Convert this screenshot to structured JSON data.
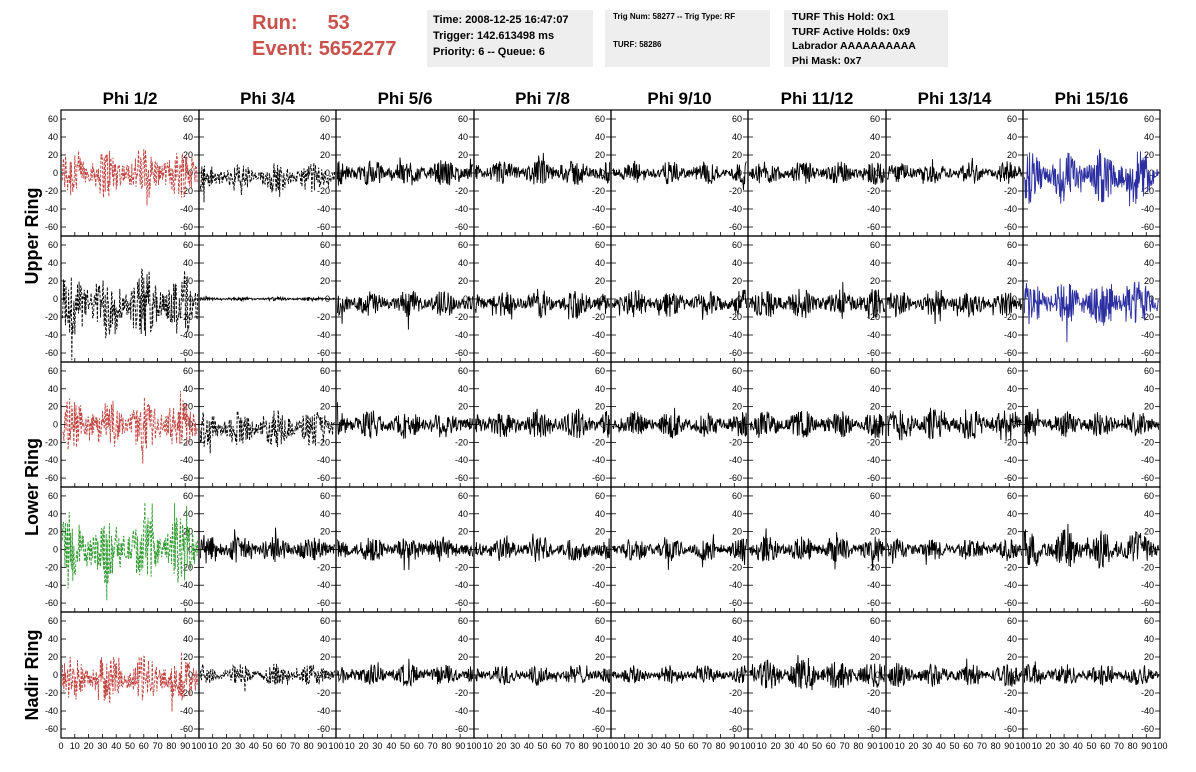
{
  "header": {
    "run_label": "Run:",
    "run_value": "53",
    "event_label": "Event:",
    "event_value": "5652277",
    "time_line": "Time: 2008-12-25 16:47:07",
    "trigger_line": "Trigger: 142.613498 ms",
    "priority_line": "Priority: 6 -- Queue: 6",
    "trig_line": "Trig Num: 58277 -- Trig Type: RF",
    "turf_line": "TURF: 58286",
    "turf_hold_line": "TURF This Hold: 0x1",
    "turf_active_line": "TURF Active Holds: 0x9",
    "labrador_line": "Labrador AAAAAAAAAA",
    "phimask_line": "Phi Mask: 0x7"
  },
  "colors": {
    "red": "#c0403c",
    "green": "#2f9a2f",
    "blue": "#2c2fa0",
    "black": "#000000",
    "run_text": "#c9504b",
    "info_box_bg": "#eeeeee"
  },
  "chart_data": {
    "type": "line",
    "columns": [
      "Phi 1/2",
      "Phi 3/4",
      "Phi 5/6",
      "Phi 7/8",
      "Phi 9/10",
      "Phi 11/12",
      "Phi 13/14",
      "Phi 15/16"
    ],
    "rows": [
      "Upper Ring",
      "Lower Ring",
      "Nadir Ring"
    ],
    "row_panels": [
      {
        "ring": "Upper Ring",
        "panel": 1
      },
      {
        "ring": "Upper Ring",
        "panel": 2
      },
      {
        "ring": "Lower Ring",
        "panel": 1
      },
      {
        "ring": "Lower Ring",
        "panel": 2
      },
      {
        "ring": "Nadir Ring",
        "panel": 1
      }
    ],
    "xlim": [
      0,
      100
    ],
    "ylim": [
      -70,
      70
    ],
    "yticks": [
      -60,
      -40,
      -20,
      0,
      20,
      40,
      60
    ],
    "xticks_first": [
      0,
      10,
      20,
      30,
      40,
      50,
      60,
      70,
      80,
      90,
      100
    ],
    "xticks_other": [
      10,
      20,
      30,
      40,
      50,
      60,
      70,
      80,
      90,
      100
    ],
    "panels": [
      {
        "row": 0,
        "col": 0,
        "color": "red",
        "style": "dashed",
        "amplitude": 28,
        "offset": 0
      },
      {
        "row": 0,
        "col": 1,
        "color": "black",
        "style": "dashed",
        "amplitude": 16,
        "offset": -5
      },
      {
        "row": 0,
        "col": 2,
        "color": "black",
        "style": "solid",
        "amplitude": 14,
        "offset": 0
      },
      {
        "row": 0,
        "col": 3,
        "color": "black",
        "style": "solid",
        "amplitude": 14,
        "offset": 0
      },
      {
        "row": 0,
        "col": 4,
        "color": "black",
        "style": "solid",
        "amplitude": 12,
        "offset": 0
      },
      {
        "row": 0,
        "col": 5,
        "color": "black",
        "style": "solid",
        "amplitude": 13,
        "offset": 0
      },
      {
        "row": 0,
        "col": 6,
        "color": "black",
        "style": "solid",
        "amplitude": 12,
        "offset": 0
      },
      {
        "row": 0,
        "col": 7,
        "color": "blue",
        "style": "solid",
        "amplitude": 28,
        "offset": -4
      },
      {
        "row": 1,
        "col": 0,
        "color": "black",
        "style": "dashed",
        "amplitude": 38,
        "offset": -6
      },
      {
        "row": 1,
        "col": 1,
        "color": "black",
        "style": "solid",
        "amplitude": 2,
        "offset": 0
      },
      {
        "row": 1,
        "col": 2,
        "color": "black",
        "style": "solid",
        "amplitude": 14,
        "offset": -5
      },
      {
        "row": 1,
        "col": 3,
        "color": "black",
        "style": "solid",
        "amplitude": 15,
        "offset": -5
      },
      {
        "row": 1,
        "col": 4,
        "color": "black",
        "style": "solid",
        "amplitude": 15,
        "offset": -5
      },
      {
        "row": 1,
        "col": 5,
        "color": "black",
        "style": "solid",
        "amplitude": 16,
        "offset": -5
      },
      {
        "row": 1,
        "col": 6,
        "color": "black",
        "style": "solid",
        "amplitude": 14,
        "offset": -5
      },
      {
        "row": 1,
        "col": 7,
        "color": "blue",
        "style": "solid",
        "amplitude": 24,
        "offset": -5
      },
      {
        "row": 2,
        "col": 0,
        "color": "red",
        "style": "dashed",
        "amplitude": 28,
        "offset": 0
      },
      {
        "row": 2,
        "col": 1,
        "color": "black",
        "style": "dashed",
        "amplitude": 20,
        "offset": -4
      },
      {
        "row": 2,
        "col": 2,
        "color": "black",
        "style": "solid",
        "amplitude": 16,
        "offset": 0
      },
      {
        "row": 2,
        "col": 3,
        "color": "black",
        "style": "solid",
        "amplitude": 16,
        "offset": 0
      },
      {
        "row": 2,
        "col": 4,
        "color": "black",
        "style": "solid",
        "amplitude": 14,
        "offset": 0
      },
      {
        "row": 2,
        "col": 5,
        "color": "black",
        "style": "solid",
        "amplitude": 15,
        "offset": 0
      },
      {
        "row": 2,
        "col": 6,
        "color": "black",
        "style": "solid",
        "amplitude": 18,
        "offset": 0
      },
      {
        "row": 2,
        "col": 7,
        "color": "black",
        "style": "solid",
        "amplitude": 14,
        "offset": 0
      },
      {
        "row": 3,
        "col": 0,
        "color": "green",
        "style": "dashed",
        "amplitude": 36,
        "offset": 0
      },
      {
        "row": 3,
        "col": 1,
        "color": "black",
        "style": "solid",
        "amplitude": 15,
        "offset": 0
      },
      {
        "row": 3,
        "col": 2,
        "color": "black",
        "style": "solid",
        "amplitude": 14,
        "offset": 0
      },
      {
        "row": 3,
        "col": 3,
        "color": "black",
        "style": "solid",
        "amplitude": 13,
        "offset": 0
      },
      {
        "row": 3,
        "col": 4,
        "color": "black",
        "style": "solid",
        "amplitude": 13,
        "offset": 0
      },
      {
        "row": 3,
        "col": 5,
        "color": "black",
        "style": "solid",
        "amplitude": 14,
        "offset": 0
      },
      {
        "row": 3,
        "col": 6,
        "color": "black",
        "style": "solid",
        "amplitude": 12,
        "offset": 0
      },
      {
        "row": 3,
        "col": 7,
        "color": "black",
        "style": "solid",
        "amplitude": 20,
        "offset": 0
      },
      {
        "row": 4,
        "col": 0,
        "color": "red",
        "style": "dashed",
        "amplitude": 26,
        "offset": -4
      },
      {
        "row": 4,
        "col": 1,
        "color": "black",
        "style": "dashed",
        "amplitude": 12,
        "offset": 0
      },
      {
        "row": 4,
        "col": 2,
        "color": "black",
        "style": "solid",
        "amplitude": 12,
        "offset": 0
      },
      {
        "row": 4,
        "col": 3,
        "color": "black",
        "style": "solid",
        "amplitude": 11,
        "offset": 0
      },
      {
        "row": 4,
        "col": 4,
        "color": "black",
        "style": "solid",
        "amplitude": 10,
        "offset": 0
      },
      {
        "row": 4,
        "col": 5,
        "color": "black",
        "style": "solid",
        "amplitude": 16,
        "offset": 0
      },
      {
        "row": 4,
        "col": 6,
        "color": "black",
        "style": "solid",
        "amplitude": 12,
        "offset": 0
      },
      {
        "row": 4,
        "col": 7,
        "color": "black",
        "style": "solid",
        "amplitude": 12,
        "offset": 0
      }
    ]
  }
}
